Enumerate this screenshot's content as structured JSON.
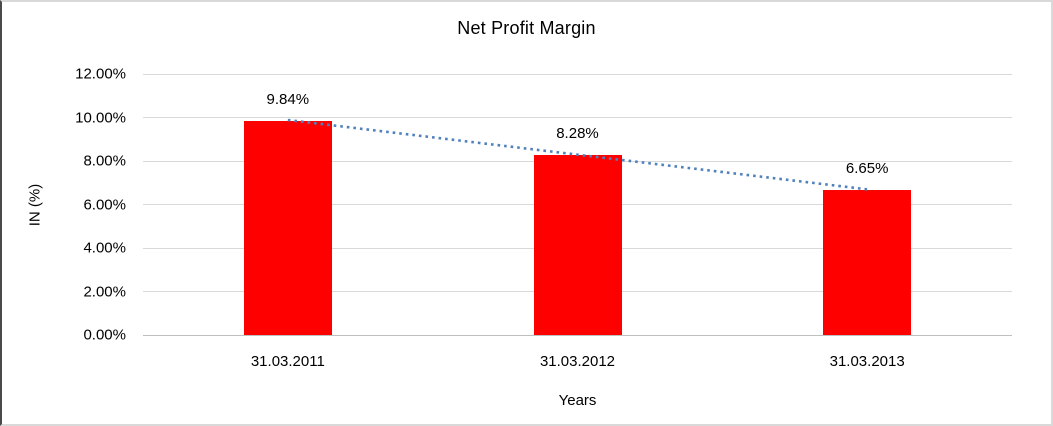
{
  "frame": {
    "background": "#FFFFFF",
    "border_light": "#D9D9D9",
    "border_dark": "#4A4A4A"
  },
  "chart_data": {
    "type": "bar",
    "title": "Net Profit Margin",
    "xlabel": "Years",
    "ylabel": "IN (%)",
    "categories": [
      "31.03.2011",
      "31.03.2012",
      "31.03.2013"
    ],
    "series": [
      {
        "name": "Net Profit Margin",
        "values": [
          9.84,
          8.28,
          6.65
        ]
      }
    ],
    "data_labels": [
      "9.84%",
      "8.28%",
      "6.65%"
    ],
    "y_tick_values": [
      0,
      2,
      4,
      6,
      8,
      10,
      12
    ],
    "y_tick_labels": [
      "0.00%",
      "2.00%",
      "4.00%",
      "6.00%",
      "8.00%",
      "10.00%",
      "12.00%"
    ],
    "ylim": [
      0,
      12
    ],
    "grid": "horizontal",
    "legend": "none",
    "bar_color": "#FF0000",
    "gridline_color": "#D9D9D9",
    "axis_line_color": "#BFBFBF",
    "trendline": {
      "type": "linear",
      "style": "dotted",
      "color": "#4F81BD",
      "start_value": 9.84,
      "end_value": 6.65
    }
  }
}
